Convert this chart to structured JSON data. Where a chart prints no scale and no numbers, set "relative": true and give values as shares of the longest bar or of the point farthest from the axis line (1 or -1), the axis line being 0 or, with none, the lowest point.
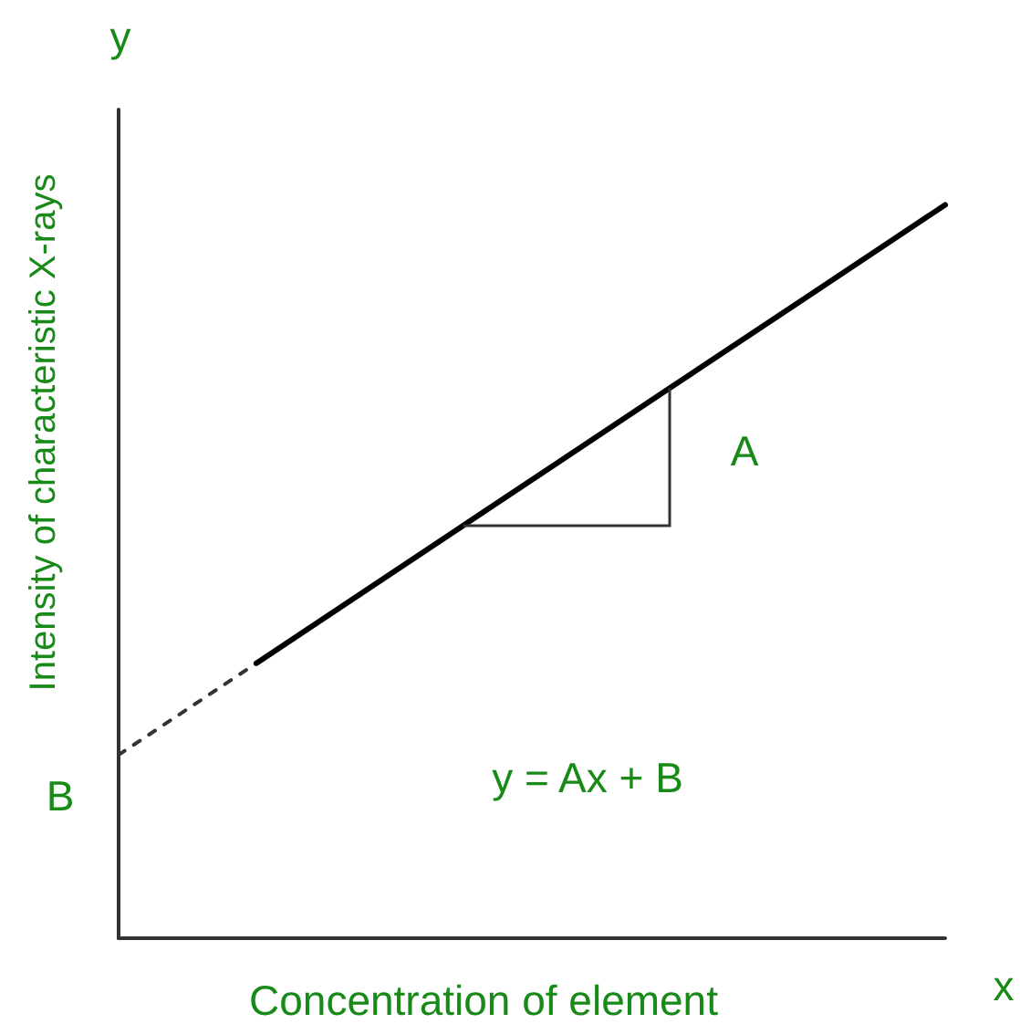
{
  "chart_data": {
    "type": "line",
    "xlabel": "Concentration of element",
    "ylabel": "Intensity of characteristic X-rays",
    "categories": [
      null,
      null,
      null,
      null,
      null,
      null,
      null
    ],
    "series": [
      {
        "color": "#333333",
        "line_style": "dashed",
        "values": [
          0.25,
          0.375,
          null,
          null,
          null,
          null,
          null
        ]
      },
      {
        "color": "#000000",
        "line_style": "solid",
        "values": [
          null,
          0.375,
          0.5,
          0.625,
          0.75,
          0.875,
          1
        ]
      }
    ],
    "relative": true,
    "marker": "none",
    "grid": false,
    "annotations": [
      "y",
      "x",
      "A",
      "y = Ax + B",
      "B"
    ]
  }
}
